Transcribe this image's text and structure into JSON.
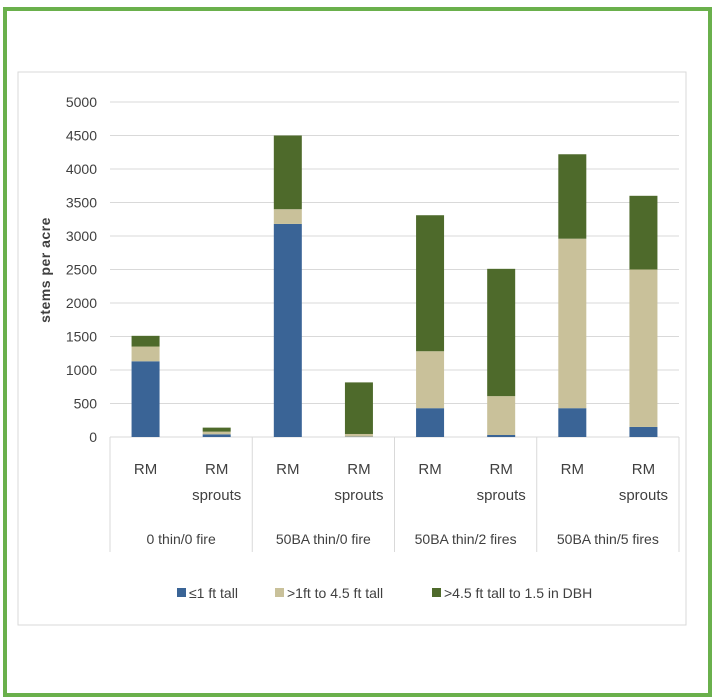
{
  "chart_data": {
    "type": "bar",
    "stacked": true,
    "ylabel": "stems per acre",
    "ylim": [
      0,
      5000
    ],
    "yticks": [
      0,
      500,
      1000,
      1500,
      2000,
      2500,
      3000,
      3500,
      4000,
      4500,
      5000
    ],
    "grid": true,
    "legend_position": "bottom",
    "groups": [
      "0 thin/0 fire",
      "50BA thin/0 fire",
      "50BA thin/2 fires",
      "50BA thin/5 fires"
    ],
    "categories": [
      {
        "line1": "RM",
        "line2": ""
      },
      {
        "line1": "RM",
        "line2": "sprouts"
      },
      {
        "line1": "RM",
        "line2": ""
      },
      {
        "line1": "RM",
        "line2": "sprouts"
      },
      {
        "line1": "RM",
        "line2": ""
      },
      {
        "line1": "RM",
        "line2": "sprouts"
      },
      {
        "line1": "RM",
        "line2": ""
      },
      {
        "line1": "RM",
        "line2": "sprouts"
      }
    ],
    "series": [
      {
        "name": "≤1 ft tall",
        "color": "#3a6496",
        "values": [
          1130,
          40,
          3180,
          5,
          430,
          30,
          430,
          150
        ]
      },
      {
        "name": ">1ft to 4.5 ft tall",
        "color": "#c9c19a",
        "values": [
          220,
          40,
          220,
          40,
          850,
          580,
          2530,
          2350
        ]
      },
      {
        "name": ">4.5 ft tall to 1.5 in DBH",
        "color": "#4e6a2b",
        "values": [
          160,
          60,
          1100,
          770,
          2030,
          1900,
          1260,
          1100
        ]
      }
    ]
  }
}
